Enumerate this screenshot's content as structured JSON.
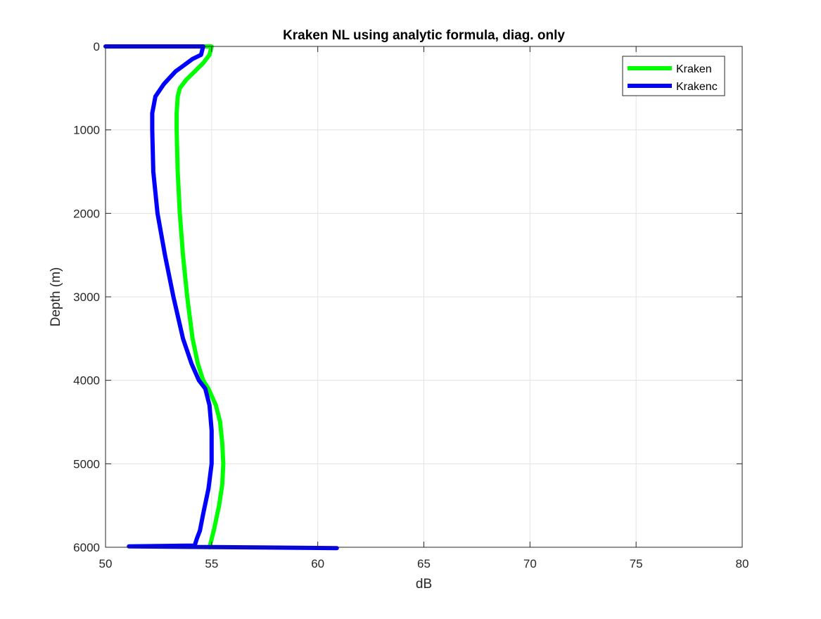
{
  "chart_data": {
    "type": "line",
    "title": "Kraken NL using analytic formula, diag. only",
    "xlabel": "dB",
    "ylabel": "Depth (m)",
    "xlim": [
      50,
      80
    ],
    "ylim": [
      0,
      6000
    ],
    "y_reversed": true,
    "grid": true,
    "legend_location": "top-right",
    "xticks": [
      "50",
      "55",
      "60",
      "65",
      "70",
      "75",
      "80"
    ],
    "yticks": [
      "0",
      "1000",
      "2000",
      "3000",
      "4000",
      "5000",
      "6000"
    ],
    "series": [
      {
        "name": "Kraken",
        "color": "#00ff00",
        "x": [
          54.6,
          55.0,
          54.9,
          54.6,
          54.2,
          53.8,
          53.5,
          53.4,
          53.35,
          53.35,
          53.4,
          53.5,
          53.65,
          53.85,
          54.1,
          54.35,
          54.6,
          54.85,
          55.2,
          55.4,
          55.5,
          55.55,
          55.5,
          55.35,
          55.1,
          54.95,
          54.9
        ],
        "y": [
          0,
          0,
          100,
          200,
          300,
          400,
          500,
          600,
          800,
          1000,
          1500,
          2000,
          2500,
          3000,
          3500,
          3800,
          4000,
          4100,
          4300,
          4500,
          4750,
          5000,
          5250,
          5500,
          5800,
          5950,
          6000
        ]
      },
      {
        "name": "Krakenc",
        "color": "#0000ff",
        "x": [
          50.0,
          54.6,
          54.5,
          54.1,
          53.3,
          52.75,
          52.35,
          52.2,
          52.2,
          52.25,
          52.45,
          52.8,
          53.2,
          53.65,
          54.05,
          54.4,
          54.7,
          54.9,
          55.0,
          55.0,
          54.85,
          54.6,
          54.45,
          54.3,
          54.2,
          51.1,
          60.9
        ],
        "y": [
          0,
          0,
          100,
          150,
          300,
          450,
          600,
          800,
          1000,
          1500,
          2000,
          2500,
          3000,
          3500,
          3800,
          4000,
          4100,
          4300,
          4600,
          5000,
          5300,
          5600,
          5800,
          5900,
          5980,
          5990,
          6010
        ]
      }
    ]
  }
}
